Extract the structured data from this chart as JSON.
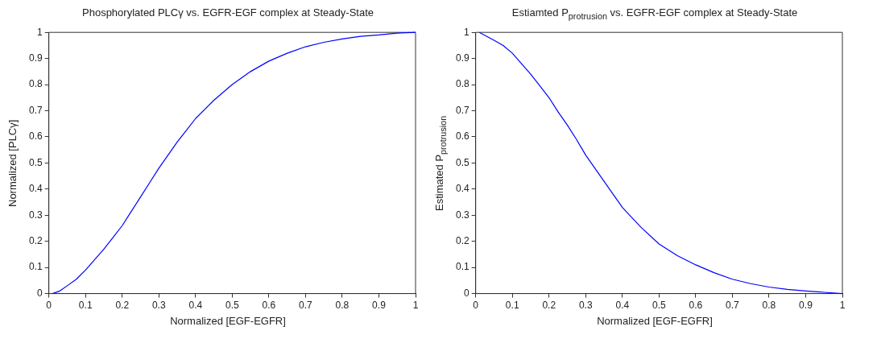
{
  "chart_data": [
    {
      "type": "line",
      "title": "Phosphorylated PLCγ vs. EGFR-EGF complex at Steady-State",
      "xlabel": "Normalized [EGF-EGFR]",
      "ylabel": "Normalized [PLCγ]",
      "marker": "none",
      "series": [
        {
          "color": "#0000ff",
          "x": [
            0.01,
            0.03,
            0.05,
            0.075,
            0.1,
            0.125,
            0.15,
            0.175,
            0.2,
            0.225,
            0.25,
            0.275,
            0.3,
            0.325,
            0.35,
            0.375,
            0.4,
            0.45,
            0.5,
            0.55,
            0.6,
            0.65,
            0.7,
            0.75,
            0.8,
            0.85,
            0.9,
            0.95,
            1
          ],
          "values": [
            0,
            0.01,
            0.03,
            0.055,
            0.09,
            0.13,
            0.17,
            0.215,
            0.26,
            0.315,
            0.37,
            0.425,
            0.48,
            0.53,
            0.58,
            0.625,
            0.67,
            0.74,
            0.8,
            0.85,
            0.89,
            0.92,
            0.945,
            0.962,
            0.975,
            0.985,
            0.99,
            0.997,
            1
          ]
        }
      ],
      "xlim": [
        0,
        1
      ],
      "xticks": [
        0,
        0.1,
        0.2,
        0.3,
        0.4,
        0.5,
        0.6,
        0.7,
        0.8,
        0.9,
        1
      ],
      "ylim": [
        0,
        1
      ],
      "yticks": [
        0,
        0.1,
        0.2,
        0.3,
        0.4,
        0.5,
        0.6,
        0.7,
        0.8,
        0.9,
        1
      ]
    },
    {
      "type": "line",
      "title": "Estiamted P$_{protrusion}$ vs. EGFR-EGF complex at Steady-State",
      "xlabel": "Normalized [EGF-EGFR]",
      "ylabel": "Estimated P$_{protrusion}$",
      "marker": "none",
      "series": [
        {
          "color": "#0000ff",
          "x": [
            0.01,
            0.05,
            0.075,
            0.1,
            0.125,
            0.15,
            0.175,
            0.2,
            0.225,
            0.25,
            0.275,
            0.3,
            0.325,
            0.35,
            0.375,
            0.4,
            0.45,
            0.5,
            0.55,
            0.6,
            0.65,
            0.7,
            0.75,
            0.8,
            0.85,
            0.9,
            0.95,
            1
          ],
          "values": [
            1,
            0.97,
            0.95,
            0.92,
            0.88,
            0.84,
            0.795,
            0.75,
            0.695,
            0.645,
            0.59,
            0.53,
            0.48,
            0.43,
            0.38,
            0.33,
            0.255,
            0.19,
            0.145,
            0.11,
            0.08,
            0.055,
            0.038,
            0.025,
            0.016,
            0.01,
            0.005,
            0
          ]
        }
      ],
      "xlim": [
        0,
        1
      ],
      "xticks": [
        0,
        0.1,
        0.2,
        0.3,
        0.4,
        0.5,
        0.6,
        0.7,
        0.8,
        0.9,
        1
      ],
      "ylim": [
        0,
        1
      ],
      "yticks": [
        0,
        0.1,
        0.2,
        0.3,
        0.4,
        0.5,
        0.6,
        0.7,
        0.8,
        0.9,
        1
      ]
    }
  ]
}
